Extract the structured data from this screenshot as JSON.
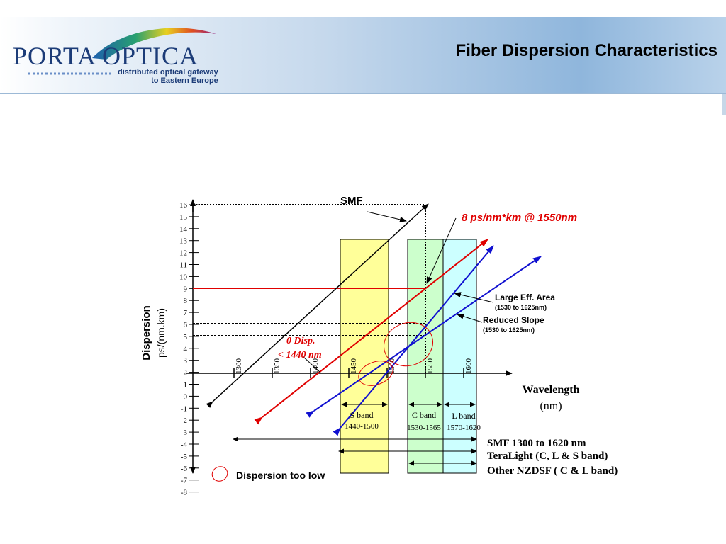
{
  "header": {
    "logo_text": "PORTA OPTICA",
    "logo_subtitle_line1": "distributed optical gateway",
    "logo_subtitle_line2": "to Eastern Europe",
    "slide_title": "Fiber Dispersion Characteristics"
  },
  "diagram": {
    "y_axis_label_line1": "Dispersion",
    "y_axis_label_line2": "ps/(nm.km)",
    "y_ticks": [
      "16",
      "15",
      "14",
      "13",
      "12",
      "11",
      "10",
      "9",
      "8",
      "7",
      "6",
      "5",
      "4",
      "3",
      "2",
      "1",
      "0",
      "-1",
      "-2",
      "-3",
      "-4",
      "-5",
      "-6",
      "-7",
      "-8"
    ],
    "x_ticks": [
      "1300",
      "1350",
      "1400",
      "1450",
      "1500",
      "1550",
      "1600"
    ],
    "x_axis_label_line1": "Wavelength",
    "x_axis_label_line2": "(nm)",
    "smf_label": "SMF",
    "red_annotation": "8 ps/nm*km @ 1550nm",
    "zero_disp_line1": "0 Disp.",
    "zero_disp_line2": "< 1440 nm",
    "large_eff_area_label": "Large Eff. Area",
    "large_eff_area_range": "(1530 to 1625nm)",
    "reduced_slope_label": "Reduced Slope",
    "reduced_slope_range": "(1530 to 1625nm)",
    "bands": [
      {
        "name": "S band",
        "range": "1440-1500",
        "color": "#ffff99"
      },
      {
        "name": "C band",
        "range": "1530-1565",
        "color": "#ccffcc"
      },
      {
        "name": "L band",
        "range": "1570-1620",
        "color": "#ccffff"
      }
    ],
    "ranges": [
      "SMF 1300 to 1620 nm",
      "TeraLight (C, L & S band)",
      "Other NZDSF ( C & L band)"
    ],
    "legend_label": "Dispersion too low",
    "colors": {
      "smf": "#000000",
      "teralight": "#e00000",
      "nzdsf": "#1010d0",
      "highlight": "#e00000"
    }
  }
}
